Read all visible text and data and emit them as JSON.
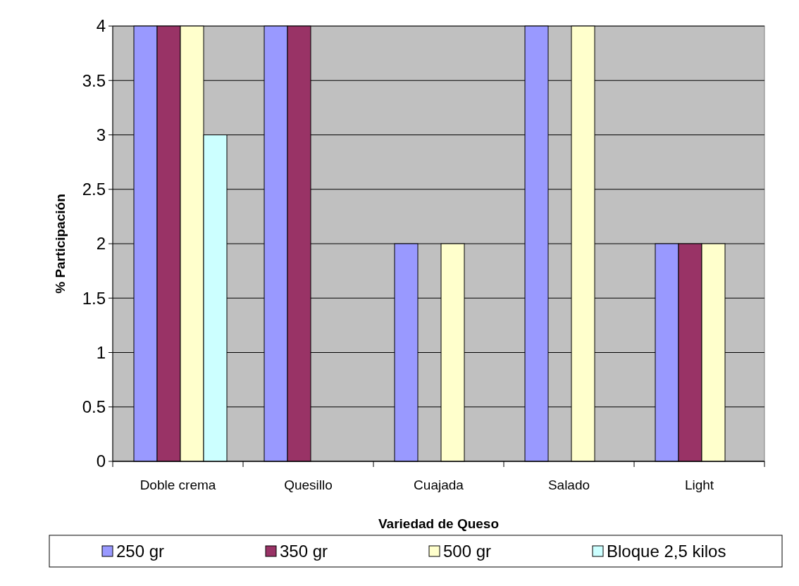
{
  "chart_data": {
    "type": "bar",
    "xlabel": "Variedad de Queso",
    "ylabel": "% Participación",
    "categories": [
      "Doble crema",
      "Quesillo",
      "Cuajada",
      "Salado",
      "Light"
    ],
    "series": [
      {
        "name": "250 gr",
        "color": "#9999ff",
        "values": [
          4,
          4,
          2,
          4,
          2
        ]
      },
      {
        "name": "350 gr",
        "color": "#993366",
        "values": [
          4,
          4,
          0,
          0,
          2
        ]
      },
      {
        "name": "500 gr",
        "color": "#ffffcc",
        "values": [
          4,
          0,
          2,
          4,
          2
        ]
      },
      {
        "name": "Bloque 2,5 kilos",
        "color": "#ccffff",
        "values": [
          3,
          0,
          0,
          0,
          0
        ]
      }
    ],
    "ylim": [
      0,
      4
    ],
    "yticks": [
      0,
      0.5,
      1,
      1.5,
      2,
      2.5,
      3,
      3.5,
      4
    ],
    "grid": "y",
    "legend": "bottom"
  }
}
